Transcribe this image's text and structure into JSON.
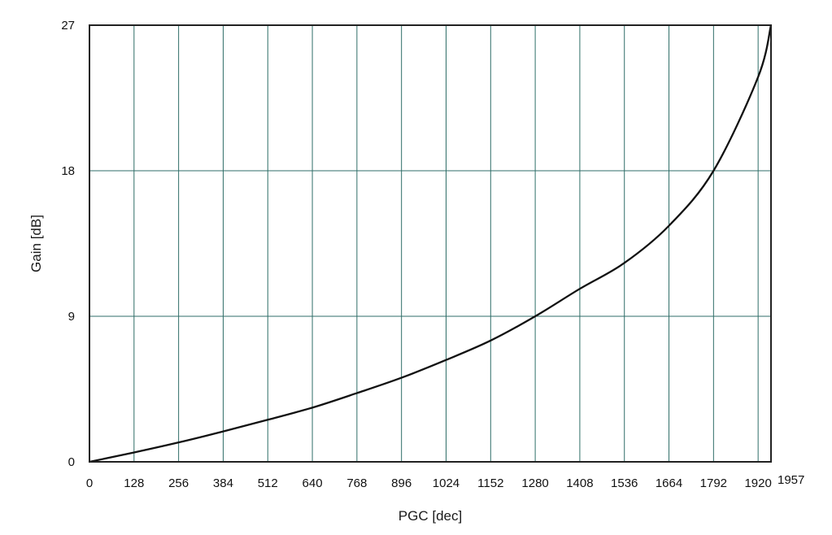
{
  "chart_data": {
    "type": "line",
    "title": "",
    "xlabel": "PGC [dec]",
    "ylabel": "Gain [dB]",
    "xlim": [
      0,
      1957
    ],
    "ylim": [
      0,
      27
    ],
    "x_ticks": [
      0,
      128,
      256,
      384,
      512,
      640,
      768,
      896,
      1024,
      1152,
      1280,
      1408,
      1536,
      1664,
      1792,
      1920,
      1957
    ],
    "y_ticks": [
      0,
      9,
      18,
      27
    ],
    "grid": true,
    "legend": "none",
    "series": [
      {
        "x": [
          0,
          128,
          256,
          384,
          512,
          640,
          768,
          896,
          1024,
          1152,
          1280,
          1408,
          1536,
          1664,
          1792,
          1920,
          1957
        ],
        "y": [
          0,
          0.58,
          1.2,
          1.88,
          2.6,
          3.35,
          4.25,
          5.2,
          6.3,
          7.5,
          9.0,
          10.7,
          12.3,
          14.6,
          18.0,
          23.8,
          27.0
        ]
      }
    ],
    "colors": {
      "line": "#111111",
      "grid": "#2f6e68",
      "frame": "#222222"
    }
  }
}
